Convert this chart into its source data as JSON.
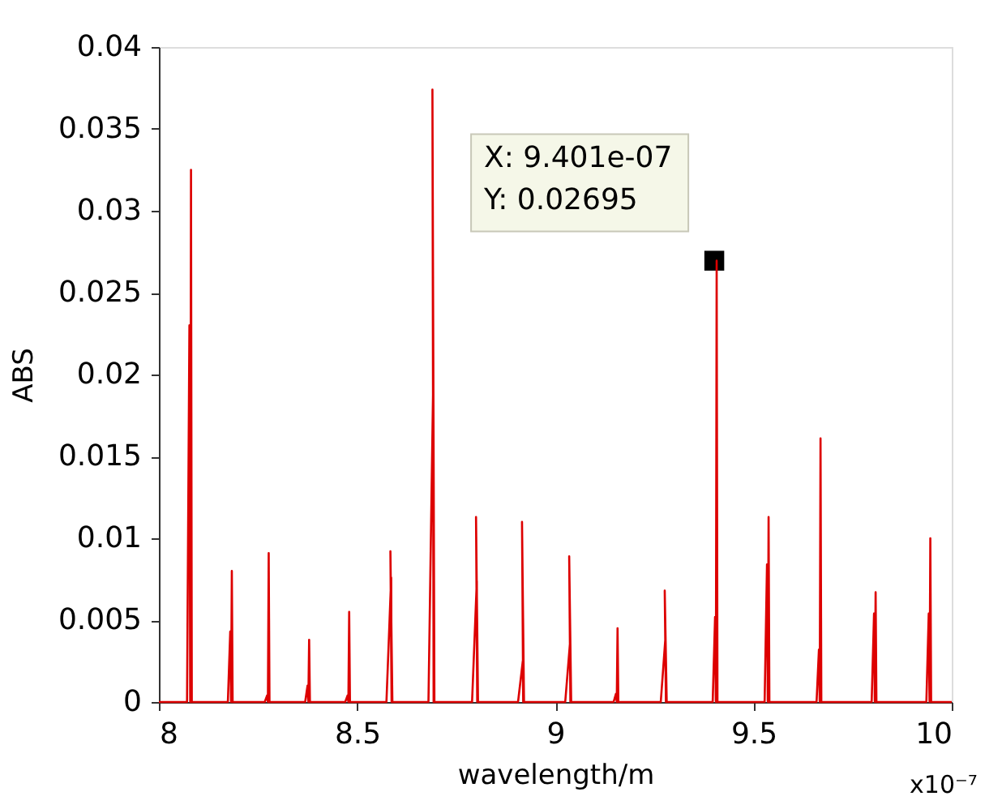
{
  "chart_data": {
    "type": "line",
    "xlabel": "wavelength/m",
    "ylabel": "ABS",
    "x": [
      8.0,
      8.071,
      8.077,
      8.079,
      8.081,
      8.083,
      8.174,
      8.18,
      8.182,
      8.184,
      8.186,
      8.267,
      8.273,
      8.275,
      8.277,
      8.279,
      8.369,
      8.375,
      8.377,
      8.379,
      8.381,
      8.47,
      8.476,
      8.478,
      8.48,
      8.482,
      8.574,
      8.586,
      8.587,
      8.584,
      8.589,
      8.68,
      8.692,
      8.693,
      8.69,
      8.695,
      8.79,
      8.802,
      8.803,
      8.8,
      8.805,
      8.906,
      8.918,
      8.919,
      8.916,
      8.921,
      9.025,
      9.037,
      9.038,
      9.035,
      9.04,
      9.147,
      9.153,
      9.155,
      9.157,
      9.159,
      9.266,
      9.278,
      9.279,
      9.276,
      9.281,
      9.397,
      9.403,
      9.405,
      9.407,
      9.409,
      9.528,
      9.534,
      9.536,
      9.538,
      9.54,
      9.659,
      9.665,
      9.667,
      9.669,
      9.671,
      9.798,
      9.804,
      9.806,
      9.808,
      9.81,
      9.936,
      9.942,
      9.944,
      9.946,
      9.948,
      10.0
    ],
    "series": [
      {
        "color": "#dd0000",
        "values": [
          0,
          0,
          0.023,
          0,
          0.0325,
          0,
          0,
          0.0043,
          0,
          0.008,
          0,
          0,
          0.0004,
          0,
          0.0091,
          0,
          0,
          0.001,
          0,
          0.0038,
          0,
          0,
          0.0004,
          0,
          0.0055,
          0,
          0,
          0.0076,
          0,
          0.0092,
          0,
          0,
          0.0196,
          0,
          0.0374,
          0,
          0,
          0.0074,
          0,
          0.0113,
          0,
          0,
          0.0025,
          0,
          0.011,
          0,
          0,
          0.0036,
          0,
          0.0089,
          0,
          0,
          0.0005,
          0,
          0.0045,
          0,
          0,
          0.004,
          0,
          0.0068,
          0,
          0,
          0.0052,
          0,
          0.02695,
          0,
          0,
          0.0084,
          0,
          0.0113,
          0,
          0,
          0.0032,
          0,
          0.0161,
          0,
          0,
          0.0054,
          0,
          0.0067,
          0,
          0,
          0.0054,
          0,
          0.01,
          0,
          0
        ]
      },
      {
        "type": "scatter",
        "marker": "square",
        "color": "#000000",
        "x": [
          9.401
        ],
        "values": [
          0.02695
        ]
      }
    ],
    "xlim": [
      8,
      10
    ],
    "xticks": [
      8,
      8.5,
      9,
      9.5,
      10
    ],
    "ylim": [
      0,
      0.04
    ],
    "yticks": [
      0,
      0.005,
      0.01,
      0.015,
      0.02,
      0.025,
      0.03,
      0.035,
      0.04
    ],
    "grid": false,
    "annotations": [
      {
        "text": "X: 9.401e-07\nY: 0.02695",
        "x": 9.401,
        "y": 0.02695
      },
      "x10⁻⁷"
    ]
  }
}
